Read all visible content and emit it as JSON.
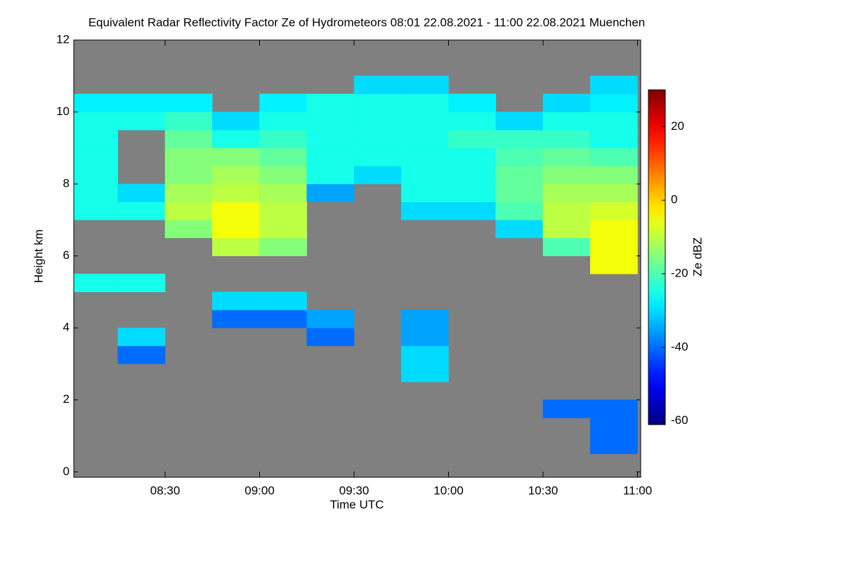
{
  "chart_data": {
    "type": "heatmap",
    "title": "Equivalent Radar Reflectivity Factor Ze of Hydrometeors   08:01 22.08.2021 - 11:00 22.08.2021 Muenchen",
    "xlabel": "Time UTC",
    "ylabel": "Height km",
    "colorbar_label": "Ze dBZ",
    "x": [
      481,
      495,
      510,
      525,
      540,
      555,
      570,
      585,
      600,
      615,
      630,
      645,
      660
    ],
    "y": [
      0,
      0.5,
      1,
      1.5,
      2,
      2.5,
      3,
      3.5,
      4,
      4.5,
      5,
      5.5,
      6,
      6.5,
      7,
      7.5,
      8,
      8.5,
      9,
      9.5,
      10,
      10.5,
      11,
      11.5,
      12
    ],
    "z": [
      [
        null,
        null,
        null,
        null,
        null,
        null,
        null,
        null,
        null,
        null,
        null,
        null
      ],
      [
        null,
        null,
        null,
        null,
        null,
        null,
        null,
        null,
        null,
        null,
        null,
        -40
      ],
      [
        null,
        null,
        null,
        null,
        null,
        null,
        null,
        null,
        null,
        null,
        null,
        -40
      ],
      [
        null,
        null,
        null,
        null,
        null,
        null,
        null,
        null,
        null,
        null,
        -40,
        -40
      ],
      [
        null,
        null,
        null,
        null,
        null,
        null,
        null,
        null,
        null,
        null,
        null,
        null
      ],
      [
        null,
        null,
        null,
        null,
        null,
        null,
        null,
        -30,
        null,
        null,
        null,
        null
      ],
      [
        null,
        -40,
        null,
        null,
        null,
        null,
        null,
        -30,
        null,
        null,
        null,
        null
      ],
      [
        null,
        -30,
        null,
        null,
        null,
        -40,
        null,
        -35,
        null,
        null,
        null,
        null
      ],
      [
        null,
        null,
        null,
        -40,
        -40,
        -35,
        null,
        -35,
        null,
        null,
        null,
        null
      ],
      [
        null,
        null,
        null,
        -30,
        -30,
        null,
        null,
        null,
        null,
        null,
        null,
        null
      ],
      [
        -25,
        -25,
        null,
        null,
        null,
        null,
        null,
        null,
        null,
        null,
        null,
        null
      ],
      [
        null,
        null,
        null,
        null,
        null,
        null,
        null,
        null,
        null,
        null,
        null,
        -5
      ],
      [
        null,
        null,
        null,
        -10,
        -15,
        null,
        null,
        null,
        null,
        null,
        -20,
        -5
      ],
      [
        null,
        null,
        -15,
        -5,
        -10,
        null,
        null,
        null,
        null,
        -30,
        -10,
        -5
      ],
      [
        -25,
        -25,
        -10,
        -5,
        -10,
        null,
        null,
        -30,
        -30,
        -20,
        -10,
        -8
      ],
      [
        -25,
        -30,
        -12,
        -10,
        -12,
        -35,
        null,
        -25,
        -25,
        -18,
        -12,
        -12
      ],
      [
        -25,
        null,
        -15,
        -12,
        -15,
        -25,
        -30,
        -25,
        -25,
        -18,
        -15,
        -15
      ],
      [
        -25,
        null,
        -15,
        -15,
        -18,
        -25,
        -25,
        -25,
        -25,
        -20,
        -18,
        -20
      ],
      [
        -25,
        null,
        -18,
        -25,
        -22,
        -25,
        -25,
        -25,
        -22,
        -22,
        -22,
        -25
      ],
      [
        -25,
        -25,
        -22,
        -30,
        -25,
        -25,
        -25,
        -25,
        -25,
        -30,
        -25,
        -25
      ],
      [
        -28,
        -28,
        -28,
        null,
        -28,
        -25,
        -25,
        -25,
        -28,
        null,
        -30,
        -28
      ],
      [
        null,
        null,
        null,
        null,
        null,
        null,
        -30,
        -30,
        null,
        null,
        null,
        -30
      ],
      [
        null,
        null,
        null,
        null,
        null,
        null,
        null,
        null,
        null,
        null,
        null,
        null
      ],
      [
        null,
        null,
        null,
        null,
        null,
        null,
        null,
        null,
        null,
        null,
        null,
        null
      ]
    ],
    "xlim": [
      481,
      661
    ],
    "xticks": [
      {
        "value": 510,
        "label": "08:30"
      },
      {
        "value": 540,
        "label": "09:00"
      },
      {
        "value": 570,
        "label": "09:30"
      },
      {
        "value": 600,
        "label": "10:00"
      },
      {
        "value": 630,
        "label": "10:30"
      },
      {
        "value": 660,
        "label": "11:00"
      }
    ],
    "ylim": [
      -0.15,
      12
    ],
    "yticks": [
      0,
      2,
      4,
      6,
      8,
      10,
      12
    ],
    "zlim": [
      -61,
      30
    ],
    "zticks": [
      -60,
      -40,
      -20,
      0,
      20
    ],
    "colormap": "jet",
    "background": "#808080"
  }
}
